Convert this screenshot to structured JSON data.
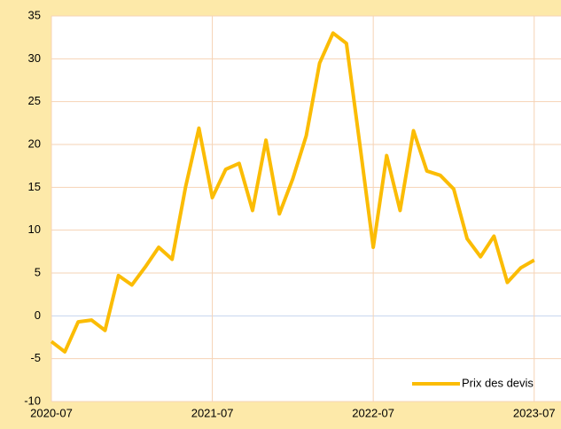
{
  "chart_data": {
    "type": "line",
    "x": [
      "2020-07",
      "2020-08",
      "2020-09",
      "2020-10",
      "2020-11",
      "2020-12",
      "2021-01",
      "2021-02",
      "2021-03",
      "2021-04",
      "2021-05",
      "2021-06",
      "2021-07",
      "2021-08",
      "2021-09",
      "2021-10",
      "2021-11",
      "2021-12",
      "2022-01",
      "2022-02",
      "2022-03",
      "2022-04",
      "2022-05",
      "2022-06",
      "2022-07",
      "2022-08",
      "2022-09",
      "2022-10",
      "2022-11",
      "2022-12",
      "2023-01",
      "2023-02",
      "2023-03",
      "2023-04",
      "2023-05",
      "2023-06",
      "2023-07"
    ],
    "series": [
      {
        "name": "Prix des devis",
        "color": "#fbbc04",
        "values": [
          -3,
          -4.2,
          -0.7,
          -0.5,
          -1.7,
          4.7,
          3.6,
          5.7,
          8,
          6.6,
          15,
          21.9,
          13.8,
          17.1,
          17.8,
          12.3,
          20.5,
          11.9,
          16,
          21,
          29.5,
          33,
          31.8,
          20,
          8,
          18.7,
          12.3,
          21.6,
          16.9,
          16.4,
          14.8,
          9,
          6.9,
          9.3,
          3.9,
          5.6,
          6.5
        ]
      }
    ],
    "xlim": [
      "2020-07",
      "2023-09"
    ],
    "xticks": [
      "2020-07",
      "2021-07",
      "2022-07",
      "2023-07"
    ],
    "ylim": [
      -10,
      35
    ],
    "yticks": [
      -10,
      -5,
      0,
      5,
      10,
      15,
      20,
      25,
      30,
      35
    ],
    "grid": true,
    "legend": "bottom-right"
  }
}
